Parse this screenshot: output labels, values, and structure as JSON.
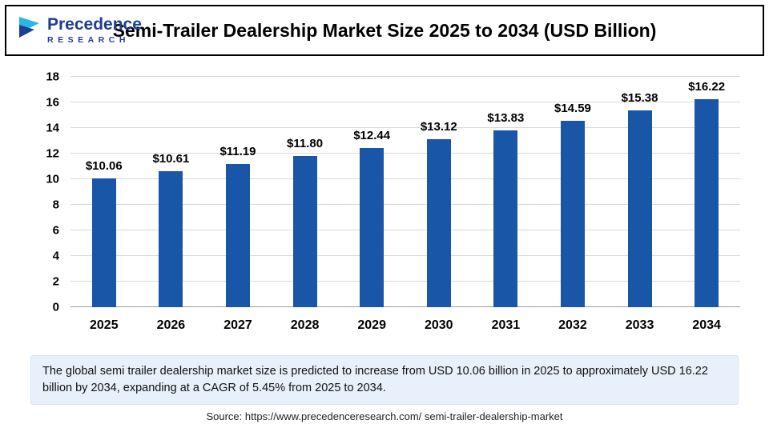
{
  "header": {
    "title": "Semi-Trailer Dealership Market Size 2025 to 2034 (USD Billion)",
    "logo_primary": "Precedence",
    "logo_secondary": "RESEARCH"
  },
  "chart_data": {
    "type": "bar",
    "title": "Semi-Trailer Dealership Market Size 2025 to 2034 (USD Billion)",
    "categories": [
      "2025",
      "2026",
      "2027",
      "2028",
      "2029",
      "2030",
      "2031",
      "2032",
      "2033",
      "2034"
    ],
    "values": [
      10.06,
      10.61,
      11.19,
      11.8,
      12.44,
      13.12,
      13.83,
      14.59,
      15.38,
      16.22
    ],
    "value_labels": [
      "$10.06",
      "$10.61",
      "$11.19",
      "$11.80",
      "$12.44",
      "$13.12",
      "$13.83",
      "$14.59",
      "$15.38",
      "$16.22"
    ],
    "xlabel": "",
    "ylabel": "",
    "ylim": [
      0,
      18
    ],
    "ytick_step": 2,
    "grid": true,
    "legend": "none",
    "bar_color": "#1956a8"
  },
  "summary": "The global semi trailer dealership market size is predicted to increase from USD 10.06 billion in 2025 to approximately USD 16.22 billion by 2034, expanding at a CAGR of 5.45% from 2025 to 2034.",
  "source": "Source: https://www.precedenceresearch.com/ semi-trailer-dealership-market",
  "colors": {
    "bar": "#1956a8",
    "logo_blue": "#1d3e93",
    "logo_cyan": "#29b6e8",
    "summary_bg": "#e8f1fb"
  }
}
